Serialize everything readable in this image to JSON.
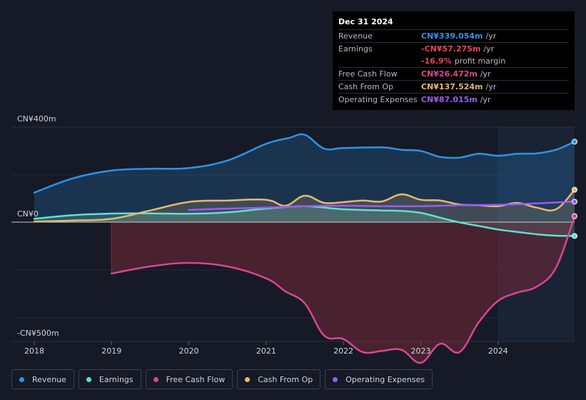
{
  "tooltip": {
    "date": "Dec 31 2024",
    "rows": [
      {
        "label": "Revenue",
        "value": "CN¥339.054m",
        "unit": "/yr",
        "color": "#2e93e6"
      },
      {
        "label": "Earnings",
        "value": "-CN¥57.275m",
        "unit": "/yr",
        "color": "#e64553"
      },
      {
        "label": "",
        "value": "-16.9%",
        "unit": "profit margin",
        "color": "#e64553"
      },
      {
        "label": "Free Cash Flow",
        "value": "CN¥26.472m",
        "unit": "/yr",
        "color": "#d6488f"
      },
      {
        "label": "Cash From Op",
        "value": "CN¥137.524m",
        "unit": "/yr",
        "color": "#e8b86a"
      },
      {
        "label": "Operating Expenses",
        "value": "CN¥87.015m",
        "unit": "/yr",
        "color": "#9b5cf0"
      }
    ]
  },
  "legend": [
    {
      "label": "Revenue",
      "color": "#2e93e6"
    },
    {
      "label": "Earnings",
      "color": "#5fe0d0"
    },
    {
      "label": "Free Cash Flow",
      "color": "#d6488f"
    },
    {
      "label": "Cash From Op",
      "color": "#e8b86a"
    },
    {
      "label": "Operating Expenses",
      "color": "#9b5cf0"
    }
  ],
  "chart_data": {
    "type": "area",
    "title": "",
    "ylabels": {
      "top": "CN¥400m",
      "zero": "CN¥0",
      "bottom": "-CN¥500m"
    },
    "ylim": [
      -500,
      400
    ],
    "xlim": [
      2018.0,
      2024.99
    ],
    "xticks": [
      2018,
      2019,
      2020,
      2021,
      2022,
      2023,
      2024
    ],
    "xtick_labels": [
      "2018",
      "2019",
      "2020",
      "2021",
      "2022",
      "2023",
      "2024"
    ],
    "forecast_start": 2024.0,
    "series": [
      {
        "name": "Revenue",
        "color": "#2e93e6",
        "fill": true,
        "points": [
          [
            2018.0,
            125
          ],
          [
            2018.5,
            185
          ],
          [
            2019.0,
            218
          ],
          [
            2019.5,
            225
          ],
          [
            2020.0,
            228
          ],
          [
            2020.5,
            260
          ],
          [
            2021.0,
            330
          ],
          [
            2021.3,
            355
          ],
          [
            2021.5,
            368
          ],
          [
            2021.75,
            310
          ],
          [
            2022.0,
            312
          ],
          [
            2022.5,
            315
          ],
          [
            2022.75,
            305
          ],
          [
            2023.0,
            300
          ],
          [
            2023.25,
            275
          ],
          [
            2023.5,
            272
          ],
          [
            2023.75,
            288
          ],
          [
            2024.0,
            280
          ],
          [
            2024.25,
            288
          ],
          [
            2024.5,
            290
          ],
          [
            2024.75,
            305
          ],
          [
            2024.99,
            339
          ]
        ]
      },
      {
        "name": "Earnings",
        "color": "#5fe0d0",
        "fill": true,
        "points": [
          [
            2018.0,
            15
          ],
          [
            2018.5,
            30
          ],
          [
            2019.0,
            37
          ],
          [
            2019.5,
            38
          ],
          [
            2020.0,
            36
          ],
          [
            2020.5,
            42
          ],
          [
            2021.0,
            58
          ],
          [
            2021.5,
            68
          ],
          [
            2022.0,
            55
          ],
          [
            2022.5,
            50
          ],
          [
            2022.75,
            48
          ],
          [
            2023.0,
            40
          ],
          [
            2023.25,
            20
          ],
          [
            2023.5,
            0
          ],
          [
            2023.75,
            -15
          ],
          [
            2024.0,
            -30
          ],
          [
            2024.25,
            -40
          ],
          [
            2024.5,
            -50
          ],
          [
            2024.75,
            -56
          ],
          [
            2024.99,
            -57
          ]
        ]
      },
      {
        "name": "Free Cash Flow",
        "color": "#d6488f",
        "fill": true,
        "points": [
          [
            2019.0,
            -215
          ],
          [
            2019.5,
            -185
          ],
          [
            2020.0,
            -170
          ],
          [
            2020.5,
            -185
          ],
          [
            2021.0,
            -235
          ],
          [
            2021.25,
            -290
          ],
          [
            2021.5,
            -340
          ],
          [
            2021.75,
            -475
          ],
          [
            2022.0,
            -490
          ],
          [
            2022.25,
            -545
          ],
          [
            2022.5,
            -540
          ],
          [
            2022.75,
            -535
          ],
          [
            2023.0,
            -590
          ],
          [
            2023.25,
            -510
          ],
          [
            2023.5,
            -545
          ],
          [
            2023.75,
            -420
          ],
          [
            2024.0,
            -330
          ],
          [
            2024.25,
            -295
          ],
          [
            2024.5,
            -270
          ],
          [
            2024.75,
            -190
          ],
          [
            2024.99,
            26
          ]
        ]
      },
      {
        "name": "Cash From Op",
        "color": "#e8b86a",
        "fill": true,
        "points": [
          [
            2018.0,
            3
          ],
          [
            2018.5,
            8
          ],
          [
            2019.0,
            15
          ],
          [
            2019.5,
            50
          ],
          [
            2020.0,
            86
          ],
          [
            2020.5,
            92
          ],
          [
            2021.0,
            95
          ],
          [
            2021.25,
            70
          ],
          [
            2021.5,
            112
          ],
          [
            2021.75,
            82
          ],
          [
            2022.0,
            85
          ],
          [
            2022.25,
            92
          ],
          [
            2022.5,
            88
          ],
          [
            2022.75,
            118
          ],
          [
            2023.0,
            95
          ],
          [
            2023.25,
            92
          ],
          [
            2023.5,
            75
          ],
          [
            2023.75,
            72
          ],
          [
            2024.0,
            68
          ],
          [
            2024.25,
            82
          ],
          [
            2024.5,
            62
          ],
          [
            2024.75,
            55
          ],
          [
            2024.99,
            137
          ]
        ]
      },
      {
        "name": "Operating Expenses",
        "color": "#9b5cf0",
        "fill": false,
        "points": [
          [
            2020.0,
            52
          ],
          [
            2020.5,
            58
          ],
          [
            2021.0,
            62
          ],
          [
            2021.5,
            68
          ],
          [
            2022.0,
            70
          ],
          [
            2022.5,
            68
          ],
          [
            2023.0,
            68
          ],
          [
            2023.5,
            72
          ],
          [
            2024.0,
            74
          ],
          [
            2024.5,
            80
          ],
          [
            2024.99,
            87
          ]
        ]
      }
    ]
  }
}
